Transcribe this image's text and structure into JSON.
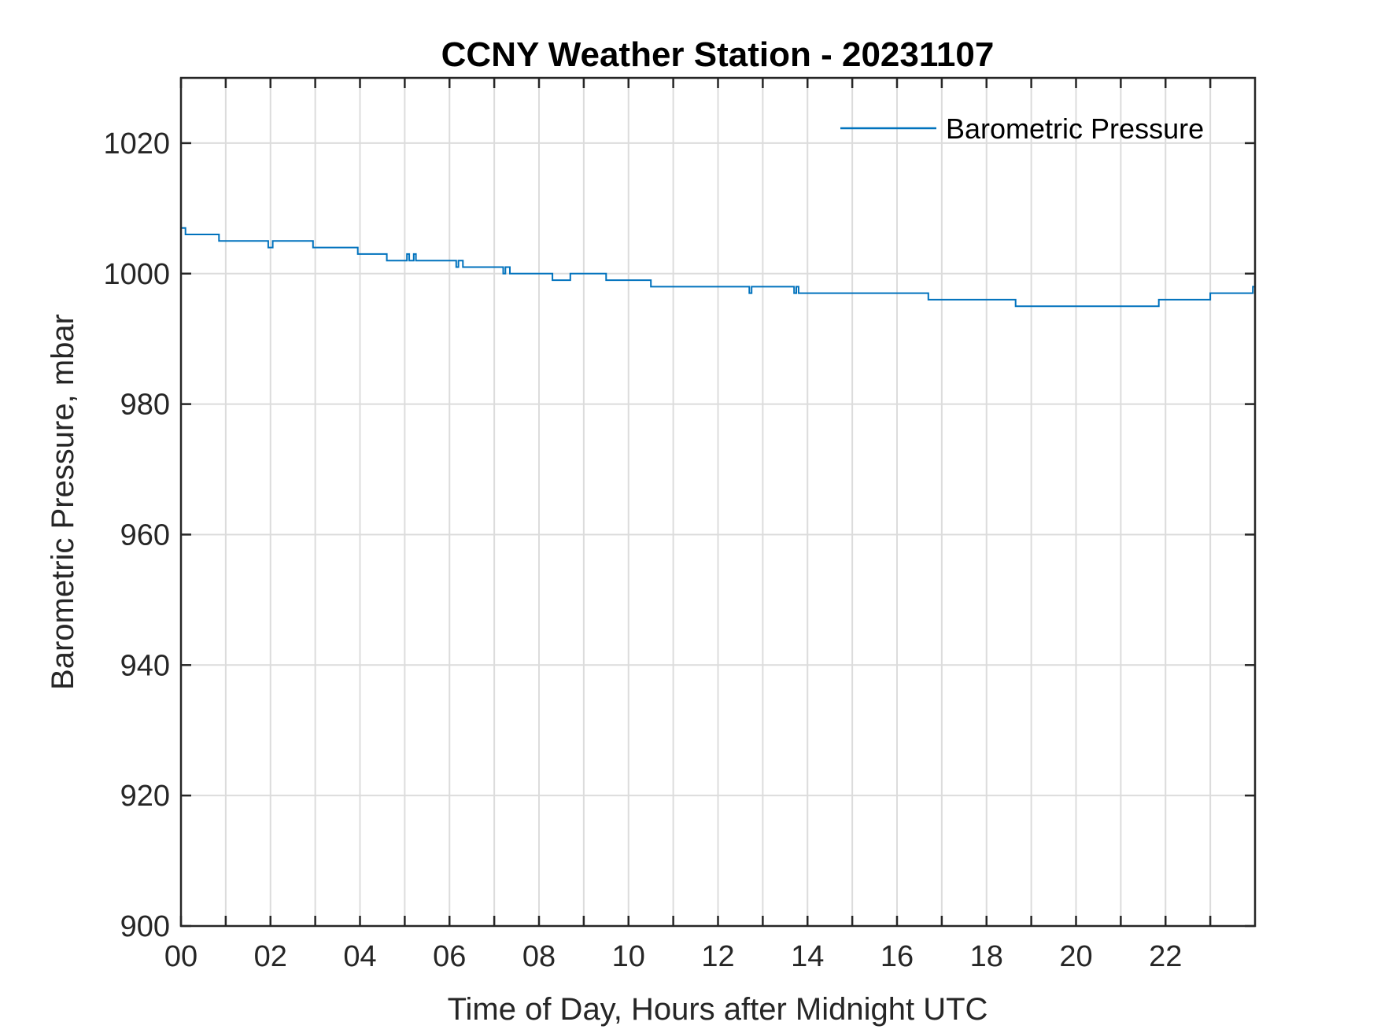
{
  "chart_data": {
    "type": "line",
    "title": "CCNY Weather Station - 20231107",
    "xlabel": "Time of Day, Hours after Midnight UTC",
    "ylabel": "Barometric Pressure, mbar",
    "xlim": [
      0,
      24
    ],
    "ylim": [
      900,
      1030
    ],
    "x_ticks": [
      0,
      2,
      4,
      6,
      8,
      10,
      12,
      14,
      16,
      18,
      20,
      22
    ],
    "x_tick_labels": [
      "00",
      "02",
      "04",
      "06",
      "08",
      "10",
      "12",
      "14",
      "16",
      "18",
      "20",
      "22"
    ],
    "x_grid": [
      0,
      1,
      2,
      3,
      4,
      5,
      6,
      7,
      8,
      9,
      10,
      11,
      12,
      13,
      14,
      15,
      16,
      17,
      18,
      19,
      20,
      21,
      22,
      23
    ],
    "y_ticks": [
      900,
      920,
      940,
      960,
      980,
      1000,
      1020
    ],
    "y_tick_labels": [
      "900",
      "920",
      "940",
      "960",
      "980",
      "1000",
      "1020"
    ],
    "grid": true,
    "legend_position": "top-right",
    "series": [
      {
        "name": "Barometric Pressure",
        "color": "#0072BD",
        "step": true,
        "x": [
          0,
          0.05,
          0.1,
          0.85,
          1.95,
          2.0,
          2.05,
          2.95,
          3.95,
          4.6,
          5.05,
          5.1,
          5.2,
          5.25,
          5.35,
          6.15,
          6.2,
          6.3,
          6.35,
          7.2,
          7.25,
          7.35,
          7.4,
          8.3,
          8.7,
          9.5,
          10.5,
          12.7,
          12.75,
          13.7,
          13.75,
          13.8,
          16.7,
          18.65,
          21.85,
          23.0,
          23.95,
          24.0
        ],
        "y": [
          1007,
          1007,
          1006,
          1005,
          1004,
          1004,
          1005,
          1004,
          1003,
          1002,
          1003,
          1002,
          1003,
          1002,
          1002,
          1001,
          1002,
          1001,
          1001,
          1000,
          1001,
          1000,
          1000,
          999,
          1000,
          999,
          998,
          997,
          998,
          997,
          998,
          997,
          996,
          995,
          996,
          997,
          998,
          998
        ]
      }
    ]
  }
}
